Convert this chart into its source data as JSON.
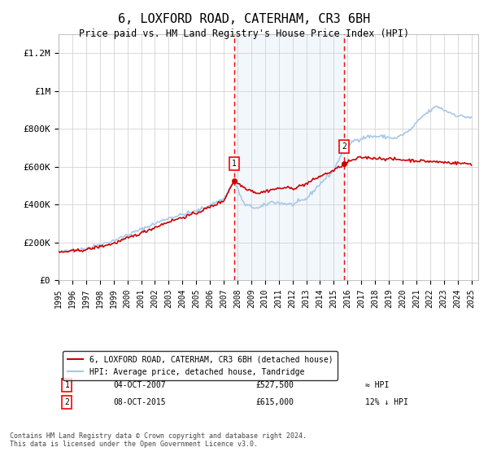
{
  "title": "6, LOXFORD ROAD, CATERHAM, CR3 6BH",
  "subtitle": "Price paid vs. HM Land Registry's House Price Index (HPI)",
  "ylabel_ticks": [
    "£0",
    "£200K",
    "£400K",
    "£600K",
    "£800K",
    "£1M",
    "£1.2M"
  ],
  "ytick_values": [
    0,
    200000,
    400000,
    600000,
    800000,
    1000000,
    1200000
  ],
  "ylim": [
    0,
    1300000
  ],
  "xlim_start": 1995.0,
  "xlim_end": 2025.5,
  "transaction1": {
    "date": "04-OCT-2007",
    "price": 527500,
    "label": "1",
    "x": 2007.75,
    "note": "≈ HPI"
  },
  "transaction2": {
    "date": "08-OCT-2015",
    "price": 615000,
    "label": "2",
    "x": 2015.75,
    "note": "12% ↓ HPI"
  },
  "hpi_color": "#a8c8e8",
  "price_color": "#cc0000",
  "shade_color": "#ddeeff",
  "legend_price_label": "6, LOXFORD ROAD, CATERHAM, CR3 6BH (detached house)",
  "legend_hpi_label": "HPI: Average price, detached house, Tandridge",
  "footnote": "Contains HM Land Registry data © Crown copyright and database right 2024.\nThis data is licensed under the Open Government Licence v3.0.",
  "xtick_years": [
    1995,
    1996,
    1997,
    1998,
    1999,
    2000,
    2001,
    2002,
    2003,
    2004,
    2005,
    2006,
    2007,
    2008,
    2009,
    2010,
    2011,
    2012,
    2013,
    2014,
    2015,
    2016,
    2017,
    2018,
    2019,
    2020,
    2021,
    2022,
    2023,
    2024,
    2025
  ],
  "price_formatted1": "£527,500",
  "price_formatted2": "£615,000"
}
